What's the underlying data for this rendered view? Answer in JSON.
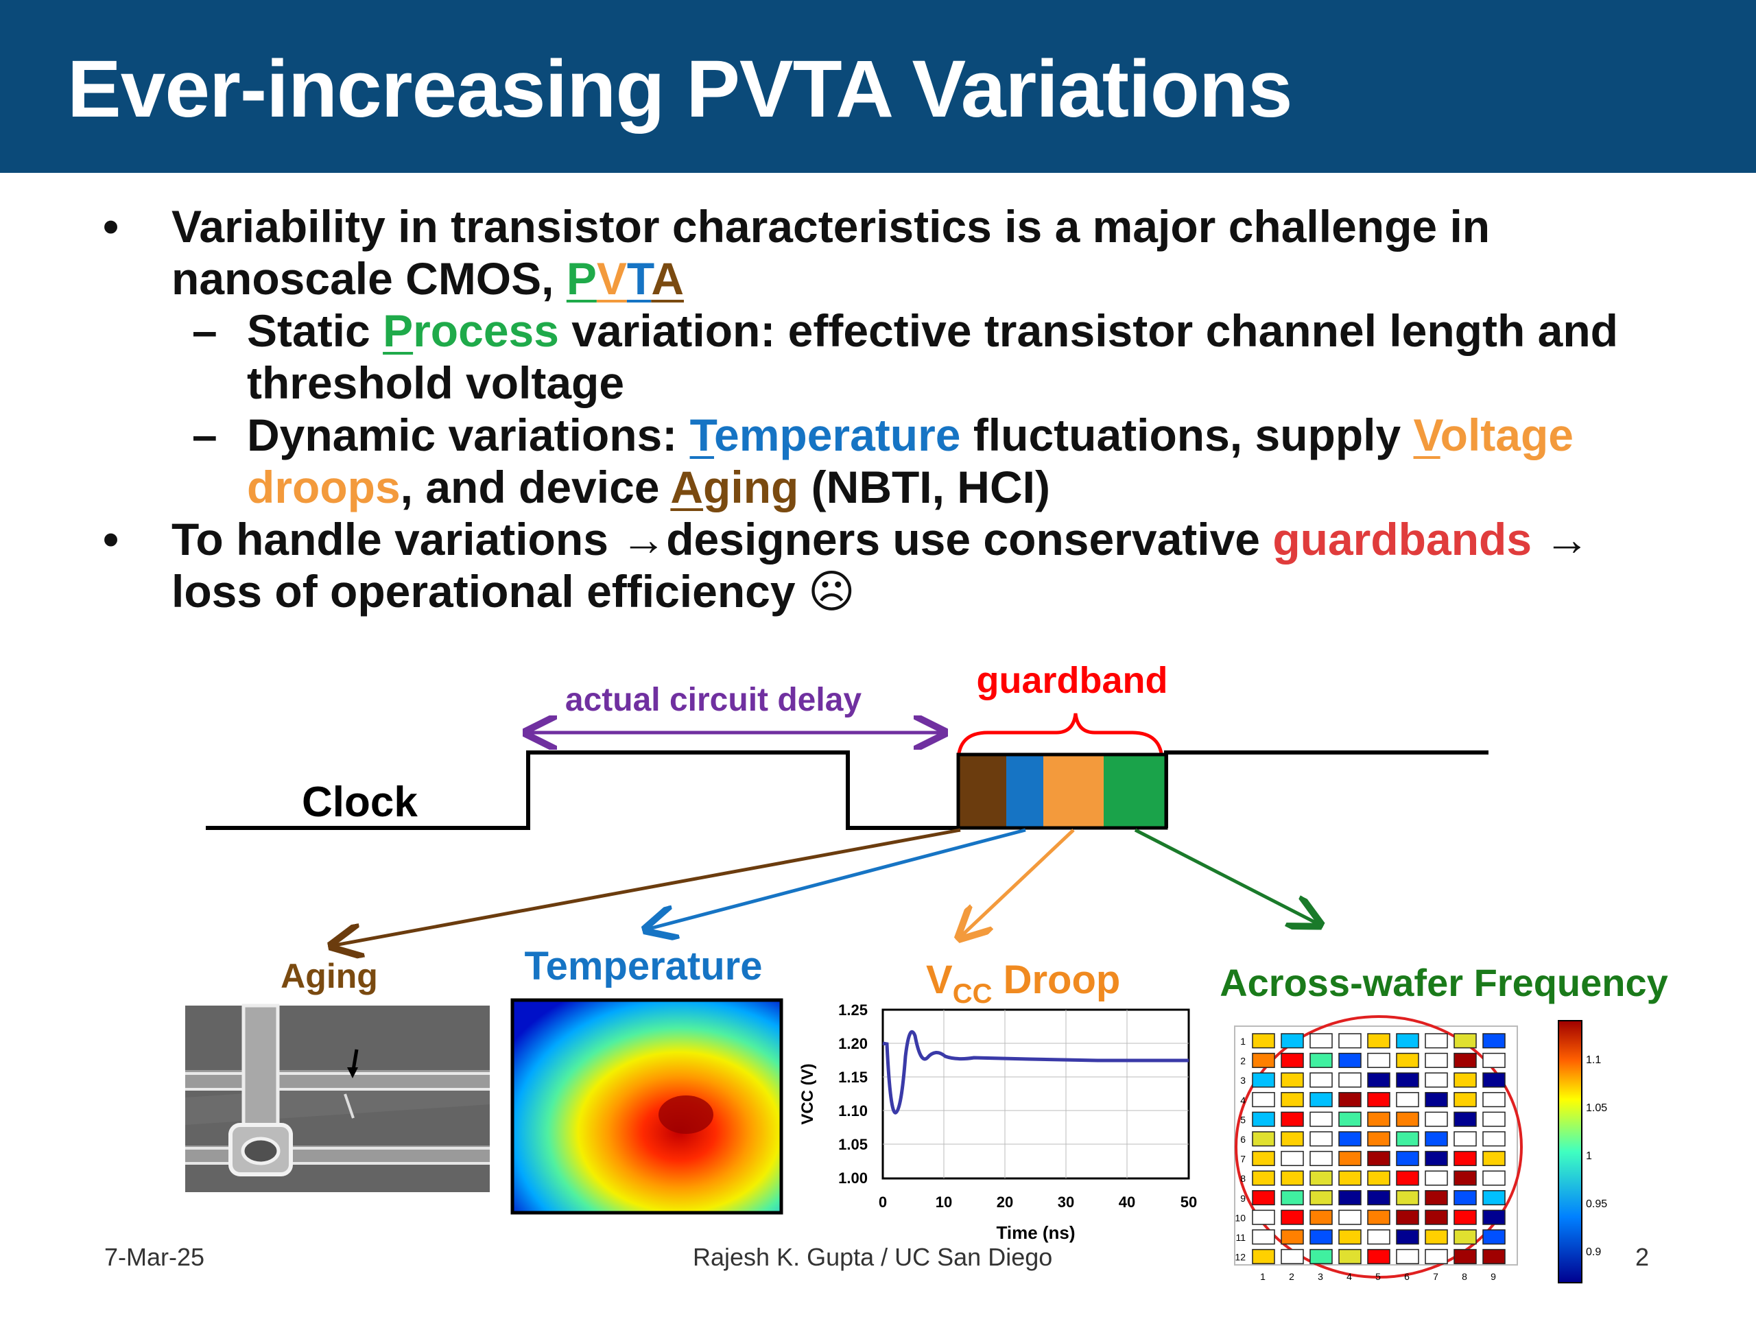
{
  "header": {
    "title": "Ever-increasing PVTA Variations",
    "bg_color": "#0b4a79"
  },
  "bullets": {
    "b1_text": "Variability in transistor characteristics is a major challenge in nanoscale CMOS, ",
    "b1_letters": [
      "P",
      "V",
      "T",
      "A"
    ],
    "sub1_pre": "Static ",
    "sub1_first": "P",
    "sub1_rest": "rocess",
    "sub1_post": " variation: effective transistor channel length and threshold voltage",
    "sub2_pre": "Dynamic variations: ",
    "sub2_temp_first": "T",
    "sub2_temp_rest": "emperature",
    "sub2_mid": " fluctuations, supply ",
    "sub2_volt_first": "V",
    "sub2_volt_rest": "oltage droops",
    "sub2_mid2": ", and device ",
    "sub2_aging_first": "A",
    "sub2_aging_rest": "ging",
    "sub2_post": " (NBTI, HCI)",
    "b2_pre": "To handle variations ",
    "b2_arrow": "→",
    "b2_mid": "designers use conservative ",
    "b2_guard": "guardbands",
    "b2_arrow2": " →",
    "b2_post": " loss of operational efficiency ",
    "b2_smiley": "☹"
  },
  "diagram": {
    "delay_label": "actual circuit delay",
    "guardband_label": "guardband",
    "clock_label": "Clock",
    "colors": {
      "aging": "#6b3c0e",
      "temperature": "#1674c4",
      "voltage": "#f39a3c",
      "process": "#1aa34a",
      "delay": "#7030a0",
      "guardband": "#ff0000"
    },
    "panels": {
      "aging_label": "Aging",
      "temperature_label": "Temperature",
      "vcc_label_main": "V",
      "vcc_label_sub": "CC",
      "vcc_label_rest": " Droop",
      "wafer_label": "Across-wafer Frequency"
    }
  },
  "vcc_plot": {
    "y_ticks": [
      "1.25",
      "1.20",
      "1.15",
      "1.10",
      "1.05",
      "1.00"
    ],
    "x_ticks": [
      "0",
      "10",
      "20",
      "30",
      "40",
      "50"
    ],
    "y_label": "VCC (V)",
    "x_label": "Time (ns)"
  },
  "wafer": {
    "row_labels": [
      "1",
      "2",
      "3",
      "4",
      "5",
      "6",
      "7",
      "8",
      "9",
      "10",
      "11",
      "12"
    ],
    "col_labels": [
      "1",
      "2",
      "3",
      "4",
      "5",
      "6",
      "7",
      "8",
      "9"
    ],
    "scale_labels": [
      "1.1",
      "1.05",
      "1",
      "0.95",
      "0.9"
    ]
  },
  "footer": {
    "date": "7-Mar-25",
    "author": "Rajesh K. Gupta / UC San Diego",
    "page": "2"
  }
}
